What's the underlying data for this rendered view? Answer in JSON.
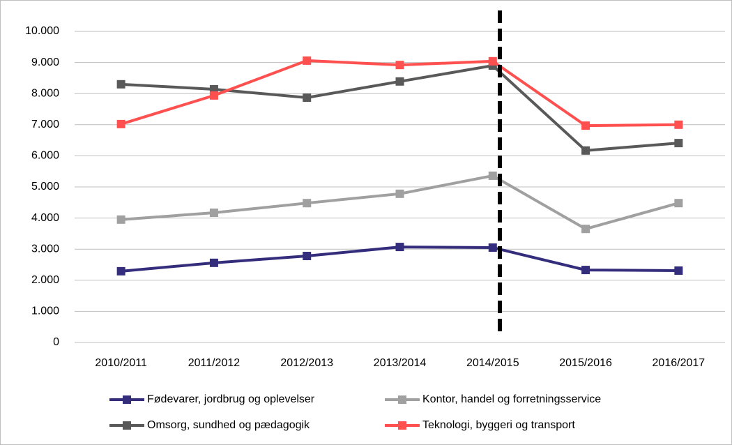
{
  "chart_data": {
    "type": "line",
    "categories": [
      "2010/2011",
      "2011/2012",
      "2012/2013",
      "2013/2014",
      "2014/2015",
      "2015/2016",
      "2016/2017"
    ],
    "series": [
      {
        "name": "Fødevarer, jordbrug og oplevelser",
        "color": "#342d7c",
        "values": [
          2290,
          2560,
          2780,
          3070,
          3050,
          2330,
          2310
        ]
      },
      {
        "name": "Kontor, handel og forretningsservice",
        "color": "#a0a0a0",
        "values": [
          3950,
          4170,
          4480,
          4780,
          5360,
          3650,
          4480
        ]
      },
      {
        "name": "Omsorg, sundhed og pædagogik",
        "color": "#595959",
        "values": [
          8300,
          8140,
          7870,
          8390,
          8900,
          6170,
          6410
        ]
      },
      {
        "name": "Teknologi, byggeri og transport",
        "color": "#ff5050",
        "values": [
          7020,
          7940,
          9060,
          8920,
          9040,
          6970,
          7000
        ]
      }
    ],
    "ylim": [
      0,
      10000
    ],
    "yticks": [
      0,
      {
        "value": 1000,
        "label": "1.000"
      },
      {
        "value": 2000,
        "label": "2.000"
      },
      {
        "value": 3000,
        "label": "3.000"
      },
      {
        "value": 4000,
        "label": "4.000"
      },
      {
        "value": 5000,
        "label": "5.000"
      },
      {
        "value": 6000,
        "label": "6.000"
      },
      {
        "value": 7000,
        "label": "7.000"
      },
      {
        "value": 8000,
        "label": "8.000"
      },
      {
        "value": 9000,
        "label": "9.000"
      },
      {
        "value": 10000,
        "label": "10.000"
      }
    ],
    "grid": true,
    "legend": "bottom"
  }
}
